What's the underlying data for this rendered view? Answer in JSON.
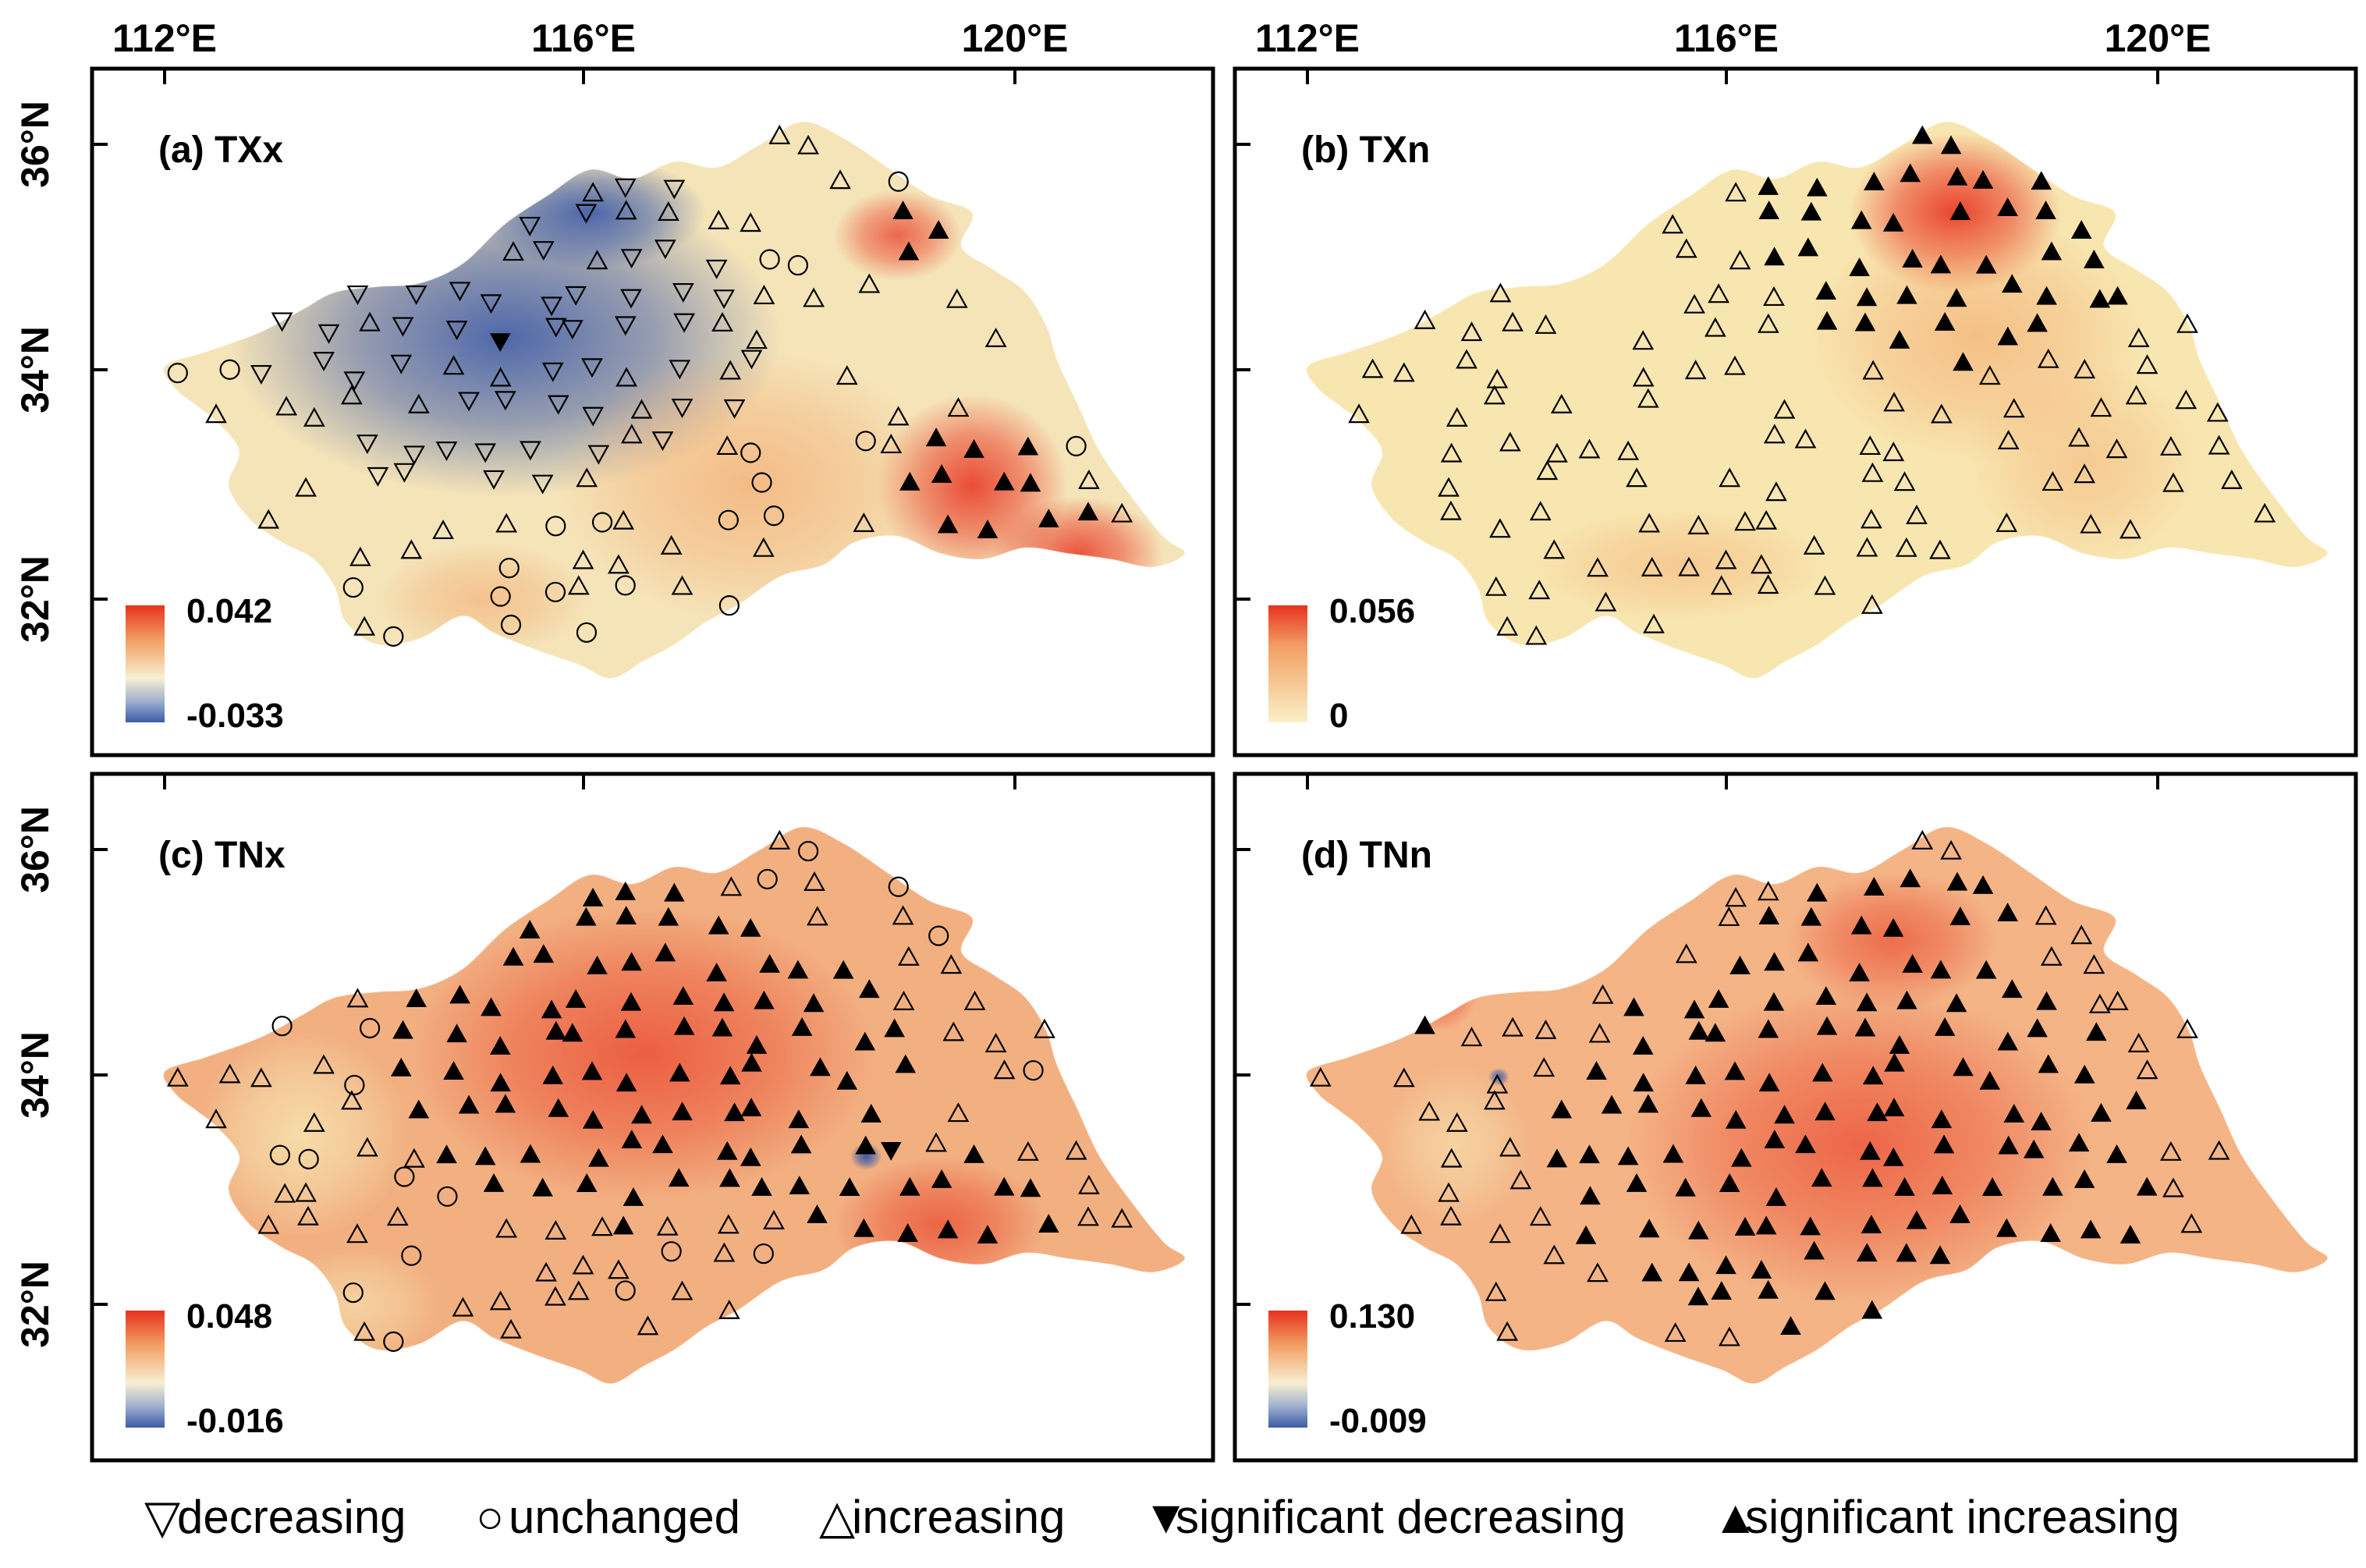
{
  "figure": {
    "x_ticks": [
      "112°E",
      "116°E",
      "120°E"
    ],
    "y_ticks": [
      "36°N",
      "34°N",
      "32°N"
    ],
    "colors": {
      "red": "#e8321e",
      "orange": "#f2a064",
      "pale": "#f7e8b4",
      "blue": "#3c5aa8",
      "marker": "#000000"
    }
  },
  "panels": [
    {
      "id": "a",
      "title": "(a) TXx",
      "colorbar": {
        "max": "0.042",
        "min": "-0.033",
        "scheme": "diverging"
      },
      "base_color": "#f5e4b8",
      "blobs": [
        {
          "kind": "blue",
          "lon": 115.2,
          "lat": 34.3,
          "lon_radius": 2.6,
          "lat_radius": 1.4,
          "strength": 0.9
        },
        {
          "kind": "blue",
          "lon": 116.0,
          "lat": 35.4,
          "lon_radius": 1.1,
          "lat_radius": 0.5,
          "strength": 0.9
        },
        {
          "kind": "red",
          "lon": 119.6,
          "lat": 33.0,
          "lon_radius": 0.9,
          "lat_radius": 0.8,
          "strength": 0.85
        },
        {
          "kind": "red",
          "lon": 118.9,
          "lat": 35.2,
          "lon_radius": 0.6,
          "lat_radius": 0.4,
          "strength": 0.7
        },
        {
          "kind": "red",
          "lon": 120.6,
          "lat": 32.4,
          "lon_radius": 0.8,
          "lat_radius": 0.5,
          "strength": 0.8
        },
        {
          "kind": "orange",
          "lon": 117.5,
          "lat": 33.0,
          "lon_radius": 1.8,
          "lat_radius": 1.2,
          "strength": 0.6
        },
        {
          "kind": "orange",
          "lon": 115.0,
          "lat": 32.0,
          "lon_radius": 1.0,
          "lat_radius": 0.5,
          "strength": 0.5
        }
      ],
      "counts": {
        "decreasing": 50,
        "unchanged": 22,
        "increasing": 52,
        "sig_decreasing": 1,
        "sig_increasing": 14
      }
    },
    {
      "id": "b",
      "title": "(b) TXn",
      "colorbar": {
        "max": "0.056",
        "min": "0",
        "scheme": "sequential"
      },
      "base_color": "#f8e6b0",
      "blobs": [
        {
          "kind": "red",
          "lon": 118.1,
          "lat": 35.4,
          "lon_radius": 1.0,
          "lat_radius": 0.7,
          "strength": 0.9
        },
        {
          "kind": "orange",
          "lon": 118.3,
          "lat": 34.3,
          "lon_radius": 1.6,
          "lat_radius": 1.1,
          "strength": 0.55
        },
        {
          "kind": "orange",
          "lon": 115.5,
          "lat": 32.3,
          "lon_radius": 1.4,
          "lat_radius": 0.5,
          "strength": 0.4
        },
        {
          "kind": "orange",
          "lon": 119.3,
          "lat": 33.2,
          "lon_radius": 1.1,
          "lat_radius": 0.9,
          "strength": 0.4
        }
      ],
      "counts": {
        "decreasing": 0,
        "unchanged": 0,
        "increasing": 100,
        "sig_decreasing": 0,
        "sig_increasing": 40
      }
    },
    {
      "id": "c",
      "title": "(c) TNx",
      "colorbar": {
        "max": "0.048",
        "min": "-0.016",
        "scheme": "diverging"
      },
      "base_color": "#f2b081",
      "blobs": [
        {
          "kind": "red",
          "lon": 116.5,
          "lat": 34.2,
          "lon_radius": 2.2,
          "lat_radius": 1.3,
          "strength": 0.65
        },
        {
          "kind": "red",
          "lon": 119.3,
          "lat": 32.7,
          "lon_radius": 1.0,
          "lat_radius": 0.6,
          "strength": 0.6
        },
        {
          "kind": "pale",
          "lon": 113.3,
          "lat": 33.5,
          "lon_radius": 1.0,
          "lat_radius": 0.9,
          "strength": 0.8
        },
        {
          "kind": "pale",
          "lon": 113.8,
          "lat": 32.0,
          "lon_radius": 0.8,
          "lat_radius": 0.5,
          "strength": 0.6
        },
        {
          "kind": "blue",
          "lon": 118.6,
          "lat": 33.3,
          "lon_radius": 0.15,
          "lat_radius": 0.12,
          "strength": 1.0
        }
      ],
      "counts": {
        "decreasing": 0,
        "unchanged": 18,
        "increasing": 55,
        "sig_decreasing": 1,
        "sig_increasing": 95
      }
    },
    {
      "id": "d",
      "title": "(d) TNn",
      "colorbar": {
        "max": "0.130",
        "min": "-0.009",
        "scheme": "diverging"
      },
      "base_color": "#f4b486",
      "blobs": [
        {
          "kind": "red",
          "lon": 117.2,
          "lat": 33.4,
          "lon_radius": 2.2,
          "lat_radius": 1.4,
          "strength": 0.6
        },
        {
          "kind": "red",
          "lon": 117.5,
          "lat": 35.2,
          "lon_radius": 1.0,
          "lat_radius": 0.6,
          "strength": 0.55
        },
        {
          "kind": "red",
          "lon": 113.2,
          "lat": 34.7,
          "lon_radius": 0.4,
          "lat_radius": 0.3,
          "strength": 0.6
        },
        {
          "kind": "pale",
          "lon": 113.4,
          "lat": 33.4,
          "lon_radius": 0.7,
          "lat_radius": 0.7,
          "strength": 0.6
        },
        {
          "kind": "blue",
          "lon": 113.8,
          "lat": 34.0,
          "lon_radius": 0.1,
          "lat_radius": 0.08,
          "strength": 0.9
        }
      ],
      "counts": {
        "decreasing": 0,
        "unchanged": 0,
        "increasing": 45,
        "sig_decreasing": 0,
        "sig_increasing": 120
      }
    }
  ],
  "legend": [
    {
      "symbol": "▽",
      "label": "decreasing"
    },
    {
      "symbol": "○",
      "label": "unchanged"
    },
    {
      "symbol": "△",
      "label": "increasing"
    },
    {
      "symbol": "▼",
      "label": "significant decreasing"
    },
    {
      "symbol": "▲",
      "label": "significant increasing"
    }
  ]
}
